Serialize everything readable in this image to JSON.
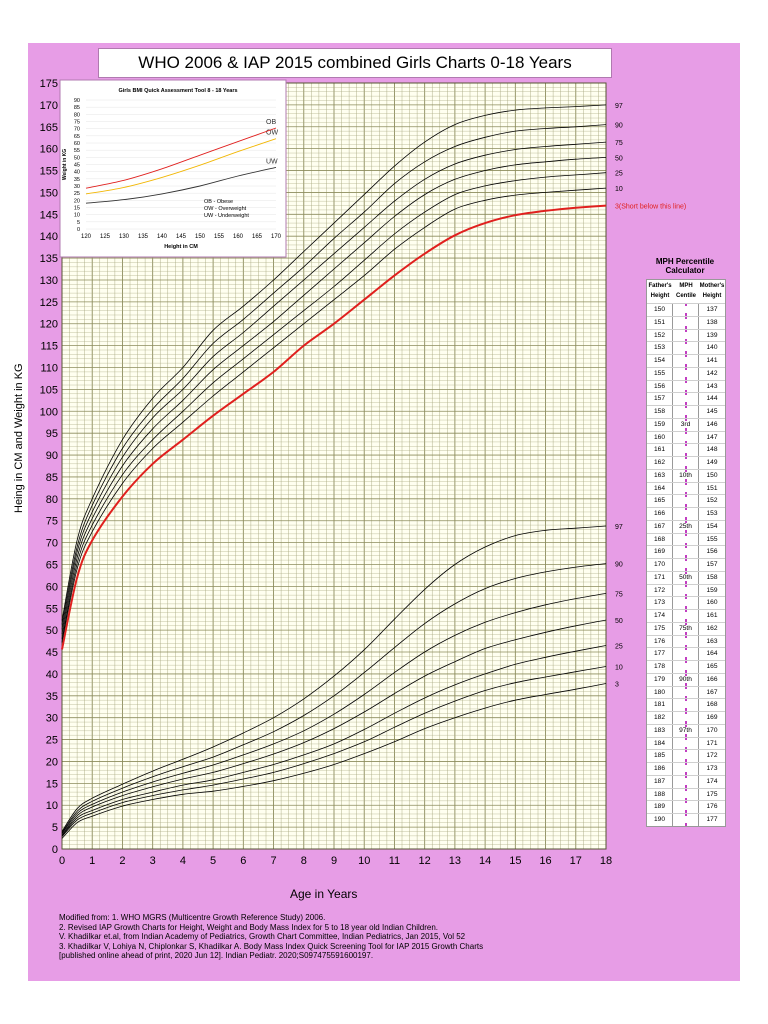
{
  "title": "WHO 2006 & IAP 2015 combined Girls Charts 0-18 Years",
  "colors": {
    "background": "#e79de6",
    "grid_major": "#8c8c5c",
    "grid_minor": "#a8a880",
    "plot_bg": "#fffff0",
    "curve": "#000000",
    "cutoff": "#e0201e"
  },
  "axis_titles": {
    "y": "Heing in CM and Weight in KG",
    "x": "Age in Years"
  },
  "chart_data": [
    {
      "type": "line",
      "title": "",
      "xlabel": "Age in Years",
      "ylabel": "Heing in CM and Weight in KG",
      "xlim": [
        0,
        18
      ],
      "ylim": [
        0,
        175
      ],
      "xticks": [
        "0",
        "1",
        "2",
        "3",
        "4",
        "5",
        "6",
        "7",
        "8",
        "9",
        "10",
        "11",
        "12",
        "13",
        "14",
        "15",
        "16",
        "17",
        "18"
      ],
      "yticks": [
        "0",
        "5",
        "10",
        "15",
        "20",
        "25",
        "30",
        "35",
        "40",
        "45",
        "50",
        "55",
        "60",
        "65",
        "70",
        "75",
        "80",
        "85",
        "90",
        "95",
        "100",
        "105",
        "110",
        "115",
        "120",
        "125",
        "130",
        "135",
        "140",
        "145",
        "150",
        "155",
        "160",
        "165",
        "170",
        "175"
      ],
      "x": [
        0,
        0.5,
        1,
        2,
        3,
        4,
        5,
        6,
        7,
        8,
        9,
        10,
        11,
        12,
        13,
        14,
        15,
        16,
        17,
        18
      ],
      "height_series": [
        {
          "name": "3",
          "label": "3(Short below this line)",
          "cutoff": true,
          "values": [
            45.6,
            62,
            70.5,
            80.5,
            88,
            93.5,
            99,
            104,
            109,
            115,
            120,
            125.5,
            131,
            136,
            140.2,
            143,
            144.8,
            145.8,
            146.5,
            147
          ]
        },
        {
          "name": "10",
          "label": "10",
          "values": [
            47.2,
            64,
            72.5,
            83.5,
            91.5,
            97.5,
            103.5,
            109,
            114.5,
            120,
            125.5,
            131,
            137,
            142,
            146.2,
            148.2,
            149.4,
            150,
            150.5,
            151
          ]
        },
        {
          "name": "25",
          "label": "25",
          "values": [
            48,
            65.2,
            74,
            85.5,
            93.5,
            100,
            106.5,
            112,
            117.5,
            123,
            128.5,
            134.5,
            140.5,
            145.5,
            149.5,
            151.5,
            152.7,
            153.5,
            154,
            154.5
          ]
        },
        {
          "name": "50",
          "label": "50",
          "values": [
            49.1,
            66.5,
            75.5,
            87.5,
            96,
            102.5,
            109.5,
            115,
            120.5,
            126.5,
            132.5,
            138.5,
            144.5,
            149.5,
            153,
            155,
            156.3,
            157,
            157.6,
            158
          ]
        },
        {
          "name": "75",
          "label": "75",
          "values": [
            50.2,
            67.8,
            77,
            89.5,
            98.5,
            105,
            112.5,
            118,
            124,
            130,
            136,
            142,
            148,
            153,
            156.5,
            158.5,
            159.8,
            160.5,
            161,
            161.5
          ]
        },
        {
          "name": "90",
          "label": "90",
          "values": [
            51.3,
            69,
            78.5,
            91.5,
            100.5,
            107.5,
            115.5,
            121,
            127,
            133,
            139.5,
            145.5,
            152,
            157,
            160.5,
            162.6,
            164,
            164.6,
            165,
            165.5
          ]
        },
        {
          "name": "97",
          "label": "97",
          "values": [
            52.2,
            70.5,
            80,
            93.5,
            103,
            110,
            118.5,
            124,
            130,
            136.5,
            143,
            149.5,
            156,
            161.5,
            165.5,
            167.6,
            168.8,
            169.3,
            169.6,
            170
          ]
        }
      ],
      "weight_series": [
        {
          "name": "3",
          "label": "3",
          "values": [
            2.4,
            6,
            7.5,
            9.8,
            11.3,
            12.5,
            13.2,
            14.3,
            15.6,
            17.3,
            19.3,
            21.8,
            24.5,
            27.5,
            30,
            32.2,
            34,
            35.3,
            36.5,
            37.8
          ]
        },
        {
          "name": "10",
          "label": "10",
          "values": [
            2.8,
            6.6,
            8.2,
            10.6,
            12.2,
            13.5,
            14.6,
            16,
            17.5,
            19.5,
            21.8,
            24.5,
            27.8,
            31,
            33.8,
            36.2,
            38,
            39.3,
            40.5,
            41.7
          ]
        },
        {
          "name": "25",
          "label": "25",
          "values": [
            3,
            7.1,
            8.8,
            11.3,
            13,
            14.6,
            15.8,
            17.5,
            19.3,
            21.5,
            24,
            27.3,
            31,
            34.5,
            37.5,
            40,
            42.2,
            43.8,
            45.2,
            46.5
          ]
        },
        {
          "name": "50",
          "label": "50",
          "values": [
            3.2,
            7.6,
            9.6,
            12.2,
            14.2,
            16,
            17.5,
            19.5,
            21.7,
            24.3,
            27.5,
            31.3,
            35.5,
            39.5,
            42.8,
            45.8,
            47.8,
            49.5,
            51,
            52.3
          ]
        },
        {
          "name": "75",
          "label": "75",
          "values": [
            3.5,
            8.1,
            10.2,
            13,
            15.3,
            17.3,
            19.2,
            21.5,
            24,
            27,
            30.8,
            35.3,
            40.3,
            45,
            48.8,
            51.8,
            54,
            55.8,
            57.2,
            58.4
          ]
        },
        {
          "name": "90",
          "label": "90",
          "values": [
            3.7,
            8.6,
            10.9,
            13.9,
            16.5,
            18.8,
            21,
            23.8,
            26.8,
            30.5,
            35,
            40.3,
            46,
            51.5,
            56,
            59.5,
            61.8,
            63.3,
            64.4,
            65.2
          ]
        },
        {
          "name": "97",
          "label": "97",
          "values": [
            4,
            9.2,
            11.6,
            14.8,
            17.8,
            20.5,
            23.3,
            26.5,
            30,
            34.3,
            39.5,
            45.5,
            52.5,
            59.3,
            65,
            69,
            71.6,
            72.8,
            73.3,
            73.8
          ]
        }
      ]
    },
    {
      "type": "line",
      "title": "Girls BMI Quick Assessment Tool 8 - 18 Years",
      "xlabel": "Height in CM",
      "ylabel": "Weight in KG",
      "xlim": [
        120,
        170
      ],
      "ylim": [
        0,
        90
      ],
      "xticks": [
        "120",
        "125",
        "130",
        "135",
        "140",
        "145",
        "150",
        "155",
        "160",
        "165",
        "170"
      ],
      "yticks": [
        "0",
        "5",
        "10",
        "15",
        "20",
        "25",
        "30",
        "35",
        "40",
        "45",
        "50",
        "55",
        "60",
        "65",
        "70",
        "75",
        "80",
        "85",
        "90"
      ],
      "x": [
        120,
        130,
        140,
        150,
        160,
        170
      ],
      "series": [
        {
          "name": "UW",
          "color": "#333333",
          "values": [
            18,
            20.5,
            24.5,
            30,
            37,
            43
          ]
        },
        {
          "name": "OW",
          "color": "#f2b705",
          "values": [
            24.5,
            29,
            36,
            44.5,
            54,
            63
          ]
        },
        {
          "name": "OB",
          "color": "#e0201e",
          "values": [
            28.5,
            34,
            42,
            51.5,
            61,
            70.5
          ]
        }
      ],
      "legend": [
        "OB - Obese",
        "OW - Overweight",
        "UW - Underweight"
      ]
    }
  ],
  "mph": {
    "title": "MPH Percentile Calculator",
    "headers": [
      "Father's Height",
      "MPH Centile",
      "Mother's Height"
    ],
    "father": [
      "150",
      "151",
      "152",
      "153",
      "154",
      "155",
      "156",
      "157",
      "158",
      "159",
      "160",
      "161",
      "162",
      "163",
      "164",
      "165",
      "166",
      "167",
      "168",
      "169",
      "170",
      "171",
      "172",
      "173",
      "174",
      "175",
      "176",
      "177",
      "178",
      "179",
      "180",
      "181",
      "182",
      "183",
      "184",
      "185",
      "186",
      "187",
      "188",
      "189",
      "190"
    ],
    "centile": [
      "",
      "",
      "",
      "",
      "",
      "",
      "",
      "",
      "",
      "3rd",
      "",
      "",
      "",
      "10th",
      "",
      "",
      "",
      "25th",
      "",
      "",
      "",
      "50th",
      "",
      "",
      "",
      "75th",
      "",
      "",
      "",
      "90th",
      "",
      "",
      "",
      "97th",
      "",
      "",
      "",
      "",
      "",
      "",
      ""
    ],
    "mother": [
      "137",
      "138",
      "139",
      "140",
      "141",
      "142",
      "143",
      "144",
      "145",
      "146",
      "147",
      "148",
      "149",
      "150",
      "151",
      "152",
      "153",
      "154",
      "155",
      "156",
      "157",
      "158",
      "159",
      "160",
      "161",
      "162",
      "163",
      "164",
      "165",
      "166",
      "167",
      "168",
      "169",
      "170",
      "171",
      "172",
      "173",
      "174",
      "175",
      "176",
      "177"
    ]
  },
  "notes": [
    "Modified from: 1. WHO MGRS (Multicentre Growth Reference Study) 2006.",
    "2. Revised IAP Growth Charts for Height, Weight and Body Mass Index for 5 to 18 year old Indian Children.",
    "V. Khadilkar et.al, from Indian Academy of Pediatrics, Growth Chart Committee, Indian Pediatrics, Jan 2015, Vol 52",
    "3. Khadilkar V, Lohiya N, Chiplonkar S, Khadilkar A. Body Mass Index Quick Screening Tool for IAP 2015 Growth Charts",
    " [published online ahead of print, 2020 Jun 12]. Indian Pediatr. 2020;S097475591600197."
  ]
}
